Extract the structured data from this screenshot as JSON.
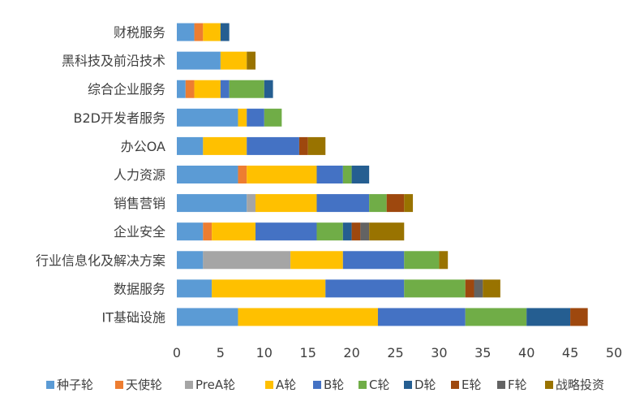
{
  "chart_data": {
    "type": "bar",
    "orientation": "horizontal",
    "stacked": true,
    "title": "",
    "xlabel": "",
    "ylabel": "",
    "xlim": [
      0,
      50
    ],
    "x_ticks": [
      0,
      5,
      10,
      15,
      20,
      25,
      30,
      35,
      40,
      45,
      50
    ],
    "grid": false,
    "legend_position": "bottom",
    "categories": [
      "财税服务",
      "黑科技及前沿技术",
      "综合企业服务",
      "B2D开发者服务",
      "办公OA",
      "人力资源",
      "销售营销",
      "企业安全",
      "行业信息化及解决方案",
      "数据服务",
      "IT基础设施"
    ],
    "series": [
      {
        "name": "种子轮",
        "color": "#5b9bd5",
        "values": [
          2,
          5,
          1,
          7,
          3,
          7,
          8,
          3,
          3,
          4,
          7
        ]
      },
      {
        "name": "天使轮",
        "color": "#ed7d31",
        "values": [
          1,
          0,
          1,
          0,
          0,
          1,
          0,
          1,
          0,
          0,
          0
        ]
      },
      {
        "name": "PreA轮",
        "color": "#a5a5a5",
        "values": [
          0,
          0,
          0,
          0,
          0,
          0,
          1,
          0,
          10,
          0,
          0
        ]
      },
      {
        "name": "A轮",
        "color": "#ffc000",
        "values": [
          2,
          3,
          3,
          1,
          5,
          8,
          7,
          5,
          6,
          13,
          16
        ]
      },
      {
        "name": "B轮",
        "color": "#4472c4",
        "values": [
          0,
          0,
          1,
          2,
          6,
          3,
          6,
          7,
          7,
          9,
          10
        ]
      },
      {
        "name": "C轮",
        "color": "#70ad47",
        "values": [
          0,
          0,
          4,
          2,
          0,
          1,
          2,
          3,
          4,
          7,
          7
        ]
      },
      {
        "name": "D轮",
        "color": "#255e91",
        "values": [
          1,
          0,
          1,
          0,
          0,
          2,
          0,
          1,
          0,
          0,
          5
        ]
      },
      {
        "name": "E轮",
        "color": "#9e480e",
        "values": [
          0,
          0,
          0,
          0,
          1,
          0,
          2,
          1,
          0,
          1,
          2
        ]
      },
      {
        "name": "F轮",
        "color": "#636363",
        "values": [
          0,
          0,
          0,
          0,
          0,
          0,
          0,
          1,
          0,
          1,
          0
        ]
      },
      {
        "name": "战略投资",
        "color": "#997300",
        "values": [
          0,
          1,
          0,
          0,
          2,
          0,
          1,
          4,
          1,
          2,
          0
        ]
      }
    ]
  }
}
